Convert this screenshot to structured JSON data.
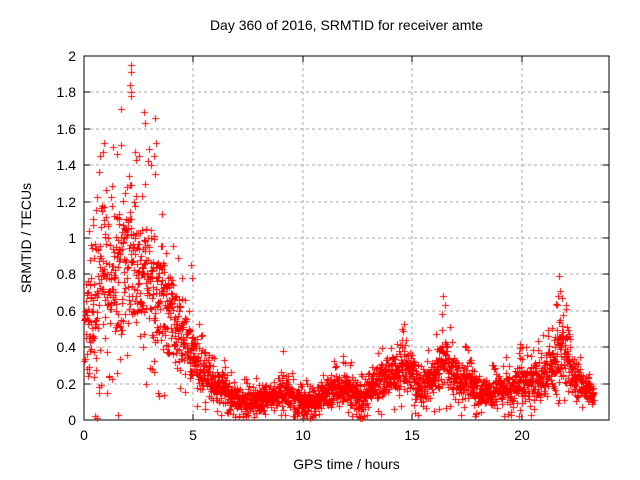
{
  "chart_data": {
    "type": "scatter",
    "title": "Day 360 of 2016, SRMTID for receiver amte",
    "xlabel": "GPS time / hours",
    "ylabel": "SRMTID / TECUs",
    "xlim": [
      0,
      24
    ],
    "ylim": [
      0,
      2
    ],
    "xticks": [
      {
        "v": 0,
        "label": "0"
      },
      {
        "v": 5,
        "label": "5"
      },
      {
        "v": 10,
        "label": "10"
      },
      {
        "v": 15,
        "label": "15"
      },
      {
        "v": 20,
        "label": "20"
      }
    ],
    "yticks": [
      {
        "v": 0,
        "label": "0"
      },
      {
        "v": 0.2,
        "label": "0.2"
      },
      {
        "v": 0.4,
        "label": "0.4"
      },
      {
        "v": 0.6,
        "label": "0.6"
      },
      {
        "v": 0.8,
        "label": "0.8"
      },
      {
        "v": 1,
        "label": "1"
      },
      {
        "v": 1.2,
        "label": "1.2"
      },
      {
        "v": 1.4,
        "label": "1.4"
      },
      {
        "v": 1.6,
        "label": "1.6"
      },
      {
        "v": 1.8,
        "label": "1.8"
      },
      {
        "v": 2,
        "label": "2"
      }
    ],
    "grid": true,
    "legend": null,
    "marker": {
      "shape": "plus",
      "size": 7,
      "color": "#ff0000"
    },
    "grid_color": "#a9a9a9",
    "frame_color": "#000000",
    "points": {
      "n": 2700,
      "t_start": 0,
      "t_end": 23.3,
      "envelope_columns": [
        "t_hours",
        "band_low_tecu",
        "band_high_tecu",
        "peak_tecu"
      ],
      "envelope": [
        [
          0.0,
          0.12,
          0.9,
          1.0
        ],
        [
          0.4,
          0.1,
          0.95,
          1.1
        ],
        [
          0.7,
          0.2,
          1.3,
          1.5
        ],
        [
          1.0,
          0.3,
          1.4,
          1.52
        ],
        [
          1.4,
          0.35,
          1.35,
          1.5
        ],
        [
          1.8,
          0.35,
          1.35,
          1.6
        ],
        [
          2.1,
          0.4,
          1.45,
          1.8
        ],
        [
          2.4,
          0.35,
          1.4,
          1.55
        ],
        [
          2.8,
          0.35,
          1.25,
          1.55
        ],
        [
          3.2,
          0.35,
          1.1,
          1.45
        ],
        [
          3.6,
          0.3,
          1.0,
          1.15
        ],
        [
          4.0,
          0.28,
          0.9,
          1.0
        ],
        [
          4.4,
          0.25,
          0.75,
          0.85
        ],
        [
          4.8,
          0.18,
          0.62,
          0.8
        ],
        [
          5.2,
          0.14,
          0.45,
          0.55
        ],
        [
          5.6,
          0.1,
          0.38,
          0.45
        ],
        [
          6.0,
          0.07,
          0.3,
          0.35
        ],
        [
          6.5,
          0.06,
          0.28,
          0.33
        ],
        [
          7.0,
          0.04,
          0.2,
          0.25
        ],
        [
          7.5,
          0.03,
          0.16,
          0.22
        ],
        [
          8.0,
          0.04,
          0.18,
          0.24
        ],
        [
          8.6,
          0.05,
          0.22,
          0.28
        ],
        [
          9.1,
          0.05,
          0.28,
          0.36
        ],
        [
          9.6,
          0.03,
          0.2,
          0.26
        ],
        [
          10.1,
          0.02,
          0.17,
          0.22
        ],
        [
          10.6,
          0.03,
          0.2,
          0.26
        ],
        [
          11.1,
          0.05,
          0.26,
          0.31
        ],
        [
          11.6,
          0.06,
          0.28,
          0.33
        ],
        [
          12.0,
          0.08,
          0.32,
          0.38
        ],
        [
          12.4,
          0.04,
          0.24,
          0.3
        ],
        [
          12.7,
          0.02,
          0.2,
          0.26
        ],
        [
          13.1,
          0.08,
          0.27,
          0.33
        ],
        [
          13.6,
          0.1,
          0.33,
          0.4
        ],
        [
          14.1,
          0.13,
          0.38,
          0.45
        ],
        [
          14.6,
          0.15,
          0.45,
          0.52
        ],
        [
          15.0,
          0.1,
          0.38,
          0.45
        ],
        [
          15.3,
          0.05,
          0.28,
          0.35
        ],
        [
          15.8,
          0.1,
          0.32,
          0.4
        ],
        [
          16.2,
          0.13,
          0.45,
          0.55
        ],
        [
          16.45,
          0.15,
          0.52,
          0.68
        ],
        [
          16.8,
          0.1,
          0.42,
          0.5
        ],
        [
          17.2,
          0.08,
          0.33,
          0.4
        ],
        [
          17.6,
          0.08,
          0.34,
          0.42
        ],
        [
          18.0,
          0.05,
          0.24,
          0.3
        ],
        [
          18.6,
          0.05,
          0.24,
          0.3
        ],
        [
          19.1,
          0.06,
          0.3,
          0.36
        ],
        [
          19.6,
          0.06,
          0.26,
          0.33
        ],
        [
          20.0,
          0.08,
          0.38,
          0.44
        ],
        [
          20.4,
          0.08,
          0.32,
          0.4
        ],
        [
          20.8,
          0.1,
          0.36,
          0.45
        ],
        [
          21.2,
          0.12,
          0.42,
          0.5
        ],
        [
          21.6,
          0.15,
          0.58,
          0.72
        ],
        [
          21.9,
          0.17,
          0.66,
          0.78
        ],
        [
          22.2,
          0.13,
          0.48,
          0.56
        ],
        [
          22.5,
          0.11,
          0.36,
          0.42
        ],
        [
          22.8,
          0.09,
          0.26,
          0.3
        ],
        [
          23.3,
          0.08,
          0.2,
          0.24
        ]
      ],
      "outliers": [
        [
          2.13,
          1.95
        ],
        [
          2.16,
          1.91
        ],
        [
          2.12,
          1.84
        ],
        [
          2.15,
          1.8
        ],
        [
          2.17,
          1.78
        ],
        [
          1.7,
          1.71
        ],
        [
          2.72,
          1.69
        ],
        [
          2.77,
          1.63
        ],
        [
          3.25,
          1.66
        ],
        [
          3.28,
          1.52
        ],
        [
          3.22,
          1.45
        ],
        [
          3.05,
          1.4
        ],
        [
          2.32,
          1.47
        ],
        [
          2.36,
          1.43
        ],
        [
          0.92,
          1.52
        ],
        [
          0.86,
          1.47
        ],
        [
          0.72,
          1.45
        ],
        [
          1.32,
          1.5
        ],
        [
          1.5,
          1.46
        ],
        [
          4.9,
          0.85
        ],
        [
          4.92,
          0.78
        ],
        [
          9.08,
          0.38
        ],
        [
          14.62,
          0.53
        ],
        [
          14.55,
          0.5
        ],
        [
          16.4,
          0.68
        ],
        [
          16.5,
          0.63
        ],
        [
          16.35,
          0.58
        ],
        [
          21.7,
          0.79
        ],
        [
          21.74,
          0.71
        ],
        [
          21.85,
          0.67
        ],
        [
          21.64,
          0.63
        ],
        [
          19.95,
          0.42
        ],
        [
          20.0,
          0.4
        ],
        [
          0.5,
          0.02
        ],
        [
          0.58,
          0.01
        ],
        [
          1.55,
          0.03
        ],
        [
          10.0,
          0.01
        ],
        [
          10.35,
          0.01
        ],
        [
          10.43,
          0.02
        ],
        [
          12.62,
          0.01
        ],
        [
          12.7,
          0.01
        ],
        [
          15.15,
          0.04
        ],
        [
          15.25,
          0.03
        ]
      ]
    }
  }
}
